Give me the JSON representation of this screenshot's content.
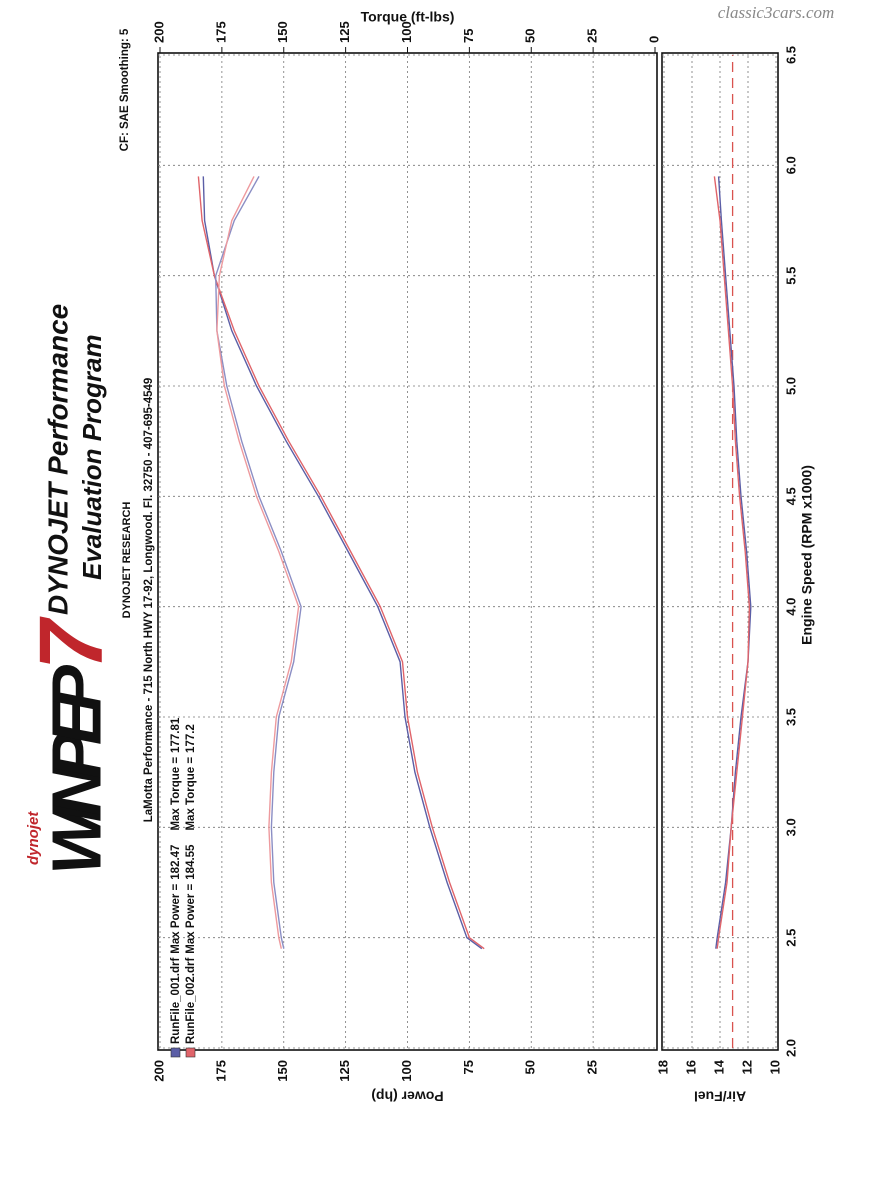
{
  "header": {
    "brand": "dynojet",
    "logo": "WINPEP",
    "logo_number": "7",
    "title": "DYNOJET Performance",
    "subtitle": "Evaluation Program",
    "company": "DYNOJET RESEARCH",
    "address": "LaMotta Performance - 715 North HWY 17-92, Longwood. Fl. 32750 - 407-695-4549",
    "settings": "CF: SAE  Smoothing: 5",
    "watermark": "classic3cars.com"
  },
  "chart_data": [
    {
      "type": "line",
      "ylabel": "Power (hp)",
      "y2label": "Torque (ft-lbs)",
      "max_power_label": "Max Power =",
      "max_torque_label": "Max Torque =",
      "xlim": [
        2,
        6.5
      ],
      "xticks": [
        2,
        2.5,
        3,
        3.5,
        4,
        4.5,
        5,
        5.5,
        6,
        6.5
      ],
      "ylim": [
        0,
        200
      ],
      "yticks": [
        25,
        50,
        75,
        100,
        125,
        150,
        175,
        200
      ],
      "y2lim": [
        0,
        200
      ],
      "y2ticks": [
        0,
        25,
        50,
        75,
        100,
        125,
        150,
        175,
        200
      ],
      "grid": true,
      "x": [
        2.45,
        2.5,
        2.75,
        3.0,
        3.25,
        3.5,
        3.75,
        4.0,
        4.25,
        4.5,
        4.75,
        5.0,
        5.25,
        5.5,
        5.75,
        5.95
      ],
      "series": [
        {
          "name": "RunFile_001.drf",
          "color": "#5b5ea6",
          "max_power": 182.47,
          "max_torque": 177.81,
          "values": [
            70,
            76,
            84,
            91,
            97,
            101,
            103,
            112,
            124,
            136,
            149,
            161,
            171,
            178,
            182,
            182.5
          ]
        },
        {
          "name": "RunFile_002.drf",
          "color": "#e0646a",
          "max_power": 184.55,
          "max_torque": 177.2,
          "values": [
            69,
            75,
            83,
            90,
            96,
            100,
            102,
            111,
            123,
            135,
            148,
            160,
            170,
            178,
            183,
            184.5
          ]
        },
        {
          "color": "#8b8ec4",
          "axis": "y2",
          "values": [
            150,
            151,
            154,
            155,
            154,
            152,
            146,
            143,
            151,
            160,
            167,
            173,
            177,
            177.5,
            170,
            160
          ]
        },
        {
          "color": "#ee9a9e",
          "axis": "y2",
          "values": [
            151,
            152,
            155,
            156,
            155,
            153,
            147,
            144,
            152,
            161,
            168,
            174,
            177,
            176,
            171,
            162
          ]
        }
      ]
    },
    {
      "type": "line",
      "xlabel": "Engine Speed (RPM x1000)",
      "ylabel": "Air/Fuel",
      "xlim": [
        2,
        6.5
      ],
      "xticks": [
        {
          "value": 2,
          "label": "2.0"
        },
        2.5,
        {
          "value": 3,
          "label": "3.0"
        },
        3.5,
        {
          "value": 4,
          "label": "4.0"
        },
        4.5,
        {
          "value": 5,
          "label": "5.0"
        },
        5.5,
        {
          "value": 6,
          "label": "6.0"
        },
        6.5
      ],
      "ylim": [
        10,
        18
      ],
      "yticks": [
        10,
        12,
        14,
        16,
        18
      ],
      "grid": true,
      "reference": 13.1,
      "reference_color": "#d9534f",
      "x": [
        2.45,
        2.5,
        2.75,
        3.0,
        3.25,
        3.5,
        3.75,
        4.0,
        4.25,
        4.5,
        4.75,
        5.0,
        5.25,
        5.5,
        5.75,
        5.95
      ],
      "series": [
        {
          "color": "#5b5ea6",
          "values": [
            14.3,
            14.2,
            13.6,
            13.2,
            12.9,
            12.5,
            12.0,
            11.8,
            12.1,
            12.5,
            12.8,
            13.0,
            13.3,
            13.6,
            13.9,
            14.1
          ]
        },
        {
          "color": "#e0646a",
          "values": [
            14.2,
            14.1,
            13.5,
            13.2,
            12.8,
            12.4,
            12.0,
            11.9,
            12.2,
            12.6,
            12.9,
            13.1,
            13.4,
            13.7,
            14.0,
            14.4
          ]
        }
      ]
    }
  ]
}
